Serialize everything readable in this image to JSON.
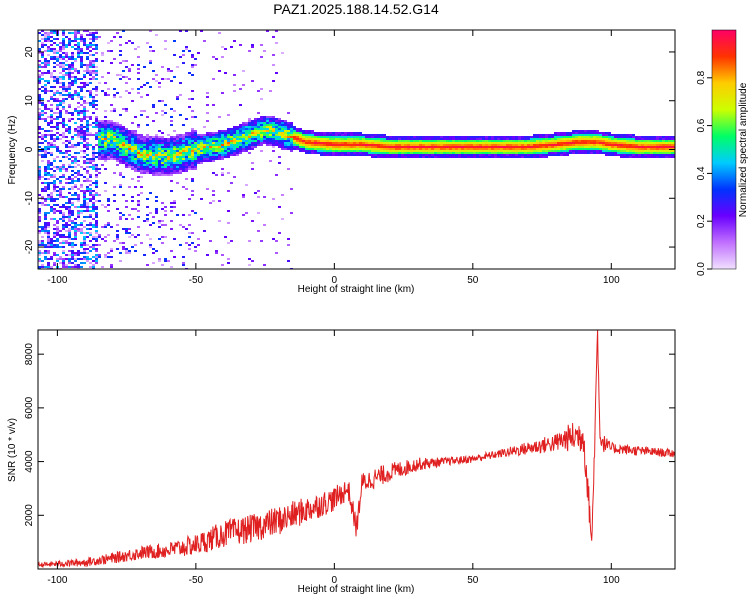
{
  "page_title": "PAZ1.2025.188.14.52.G14",
  "chart_data": [
    {
      "type": "heatmap",
      "title": "PAZ1.2025.188.14.52.G14",
      "xlabel": "Height of straight line (km)",
      "ylabel": "Frequency (Hz)",
      "xlim": [
        -107,
        123
      ],
      "ylim": [
        -24.5,
        24.5
      ],
      "x_ticks": [
        -100,
        -50,
        0,
        50,
        100
      ],
      "x_tick_labels": [
        "-100",
        "-50",
        "0",
        "50",
        "100"
      ],
      "y_ticks": [
        -20,
        -10,
        0,
        10,
        20
      ],
      "y_tick_labels": [
        "-20",
        "-10",
        "0",
        "10",
        "20"
      ],
      "colorbar": {
        "label": "Normalized spectral amplitude",
        "range": [
          0,
          1
        ],
        "ticks": [
          0.0,
          0.2,
          0.4,
          0.6,
          0.8
        ],
        "tick_labels": [
          "0.0",
          "0.2",
          "0.4",
          "0.6",
          "0.8"
        ],
        "colormap": [
          "#f0e0ff",
          "#c070ff",
          "#6a00ff",
          "#0033ff",
          "#00ccff",
          "#00ff66",
          "#ccff00",
          "#ffcc00",
          "#ff3300",
          "#ff0066"
        ]
      },
      "ridge": {
        "x": [
          -80,
          -70,
          -60,
          -50,
          -40,
          -30,
          -25,
          -20,
          -15,
          -10,
          0,
          10,
          20,
          30,
          40,
          50,
          60,
          70,
          80,
          88,
          92,
          95,
          100,
          110,
          123
        ],
        "freq": [
          2.0,
          -1.0,
          -1.5,
          0.0,
          1.0,
          3.0,
          4.0,
          3.5,
          2.5,
          1.5,
          1.0,
          1.0,
          0.5,
          0.5,
          0.5,
          0.5,
          0.5,
          0.5,
          1.0,
          1.5,
          1.5,
          1.5,
          1.0,
          0.5,
          0.5
        ]
      }
    },
    {
      "type": "line",
      "xlabel": "Height of straight line (km)",
      "ylabel": "SNR (10 * v/v)",
      "xlim": [
        -107,
        123
      ],
      "ylim": [
        0,
        8900
      ],
      "x_ticks": [
        -100,
        -50,
        0,
        50,
        100
      ],
      "x_tick_labels": [
        "-100",
        "-50",
        "0",
        "50",
        "100"
      ],
      "y_ticks": [
        2000,
        4000,
        6000,
        8000
      ],
      "y_tick_labels": [
        "2000",
        "4000",
        "6000",
        "8000"
      ],
      "line_color": "#e02020",
      "trend": {
        "x": [
          -107,
          -90,
          -80,
          -70,
          -60,
          -50,
          -40,
          -30,
          -20,
          -10,
          0,
          5,
          8,
          10,
          15,
          20,
          30,
          40,
          50,
          60,
          70,
          80,
          85,
          90,
          93,
          94,
          95,
          96,
          97,
          100,
          110,
          123
        ],
        "snr": [
          150,
          250,
          400,
          600,
          700,
          900,
          1300,
          1500,
          1800,
          2200,
          2600,
          3000,
          1500,
          3200,
          3400,
          3600,
          3900,
          4000,
          4100,
          4300,
          4500,
          4700,
          4900,
          5000,
          1000,
          4700,
          8900,
          4900,
          4700,
          4500,
          4400,
          4300
        ]
      },
      "noise_amplitude": {
        "x": [
          -107,
          -80,
          -60,
          -40,
          -20,
          0,
          20,
          40,
          60,
          80,
          90,
          100,
          123
        ],
        "amp": [
          80,
          200,
          300,
          500,
          550,
          450,
          350,
          150,
          150,
          350,
          700,
          200,
          150
        ]
      }
    }
  ]
}
